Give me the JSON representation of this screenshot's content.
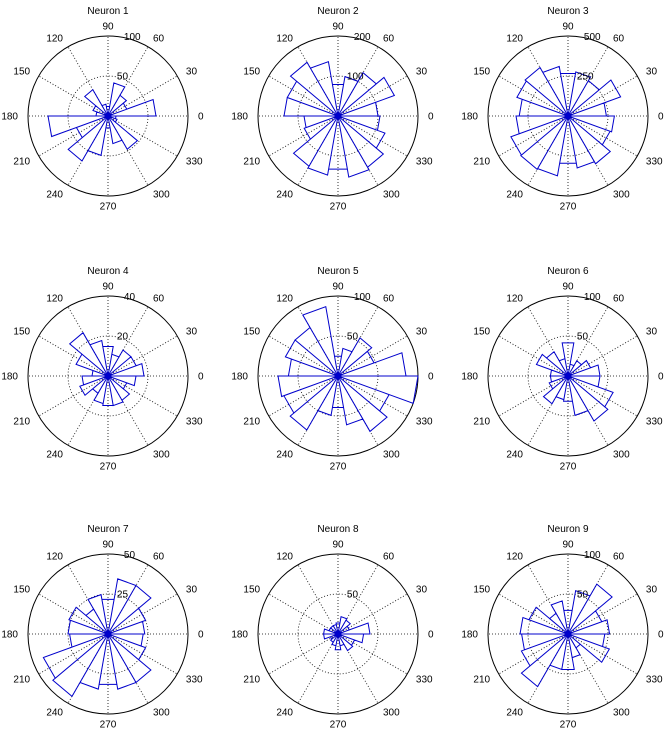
{
  "chart_data": [
    {
      "type": "polar-rose",
      "title": "Neuron 1",
      "rmax": 100,
      "r_ticks": [
        50,
        100
      ],
      "theta_labels": [
        "0",
        "30",
        "60",
        "90",
        "120",
        "150",
        "180",
        "210",
        "240",
        "270",
        "300",
        "330"
      ],
      "bins_deg": [
        0,
        20,
        40,
        60,
        80,
        100,
        120,
        140,
        160,
        180,
        200,
        220,
        240,
        260,
        280,
        300,
        320,
        340
      ],
      "values": [
        60,
        25,
        30,
        42,
        12,
        15,
        38,
        20,
        15,
        75,
        42,
        65,
        50,
        15,
        35,
        48,
        12,
        10
      ]
    },
    {
      "type": "polar-rose",
      "title": "Neuron 2",
      "rmax": 200,
      "r_ticks": [
        100,
        200
      ],
      "theta_labels": [
        "0",
        "30",
        "60",
        "90",
        "120",
        "150",
        "180",
        "210",
        "240",
        "270",
        "300",
        "330"
      ],
      "bins_deg": [
        0,
        20,
        40,
        60,
        80,
        100,
        120,
        140,
        160,
        180,
        200,
        220,
        240,
        260,
        280,
        300,
        320,
        340
      ],
      "values": [
        100,
        150,
        125,
        100,
        80,
        138,
        155,
        135,
        135,
        85,
        90,
        145,
        150,
        135,
        155,
        148,
        125,
        105
      ]
    },
    {
      "type": "polar-rose",
      "title": "Neuron 3",
      "rmax": 500,
      "r_ticks": [
        250,
        500
      ],
      "theta_labels": [
        "0",
        "30",
        "60",
        "90",
        "120",
        "150",
        "180",
        "210",
        "240",
        "270",
        "300",
        "330"
      ],
      "bins_deg": [
        0,
        20,
        40,
        60,
        80,
        100,
        120,
        140,
        160,
        180,
        200,
        220,
        240,
        260,
        280,
        300,
        320,
        340
      ],
      "values": [
        240,
        350,
        255,
        280,
        270,
        315,
        350,
        340,
        305,
        325,
        380,
        385,
        380,
        300,
        330,
        345,
        280,
        290
      ]
    },
    {
      "type": "polar-rose",
      "title": "Neuron 4",
      "rmax": 40,
      "r_ticks": [
        20,
        40
      ],
      "theta_labels": [
        "0",
        "30",
        "60",
        "90",
        "120",
        "150",
        "180",
        "210",
        "240",
        "270",
        "300",
        "330"
      ],
      "bins_deg": [
        0,
        20,
        40,
        60,
        80,
        100,
        120,
        140,
        160,
        180,
        200,
        220,
        240,
        260,
        280,
        300,
        320,
        340
      ],
      "values": [
        18,
        15,
        15,
        11,
        15,
        18,
        25,
        17,
        8,
        13,
        15,
        10,
        14,
        15,
        15,
        14,
        10,
        14
      ]
    },
    {
      "type": "polar-rose",
      "title": "Neuron 5",
      "rmax": 100,
      "r_ticks": [
        50,
        100
      ],
      "theta_labels": [
        "0",
        "30",
        "60",
        "90",
        "120",
        "150",
        "180",
        "210",
        "240",
        "270",
        "300",
        "330"
      ],
      "bins_deg": [
        0,
        20,
        40,
        60,
        80,
        100,
        120,
        140,
        160,
        180,
        200,
        220,
        240,
        260,
        280,
        300,
        320,
        340
      ],
      "values": [
        85,
        48,
        55,
        35,
        25,
        88,
        70,
        70,
        62,
        75,
        72,
        78,
        50,
        40,
        62,
        80,
        68,
        100
      ]
    },
    {
      "type": "polar-rose",
      "title": "Neuron 6",
      "rmax": 100,
      "r_ticks": [
        50,
        100
      ],
      "theta_labels": [
        "0",
        "30",
        "60",
        "90",
        "120",
        "150",
        "180",
        "210",
        "240",
        "270",
        "300",
        "330"
      ],
      "bins_deg": [
        0,
        20,
        40,
        60,
        80,
        100,
        120,
        140,
        160,
        180,
        200,
        220,
        240,
        260,
        280,
        300,
        320,
        340
      ],
      "values": [
        40,
        30,
        22,
        15,
        42,
        22,
        35,
        42,
        22,
        22,
        25,
        40,
        30,
        32,
        50,
        65,
        60,
        40
      ]
    },
    {
      "type": "polar-rose",
      "title": "Neuron 7",
      "rmax": 50,
      "r_ticks": [
        25,
        50
      ],
      "theta_labels": [
        "0",
        "30",
        "60",
        "90",
        "120",
        "150",
        "180",
        "210",
        "240",
        "270",
        "300",
        "330"
      ],
      "bins_deg": [
        0,
        20,
        40,
        60,
        80,
        100,
        120,
        140,
        160,
        180,
        200,
        220,
        240,
        260,
        280,
        300,
        320,
        340
      ],
      "values": [
        23,
        25,
        35,
        35,
        22,
        25,
        18,
        26,
        25,
        24,
        43,
        45,
        35,
        32,
        35,
        35,
        25,
        22
      ]
    },
    {
      "type": "polar-rose",
      "title": "Neuron 8",
      "rmax": 100,
      "r_ticks": [
        50
      ],
      "theta_labels": [
        "0",
        "30",
        "60",
        "90",
        "120",
        "150",
        "180",
        "210",
        "240",
        "270",
        "300",
        "330"
      ],
      "bins_deg": [
        0,
        20,
        40,
        60,
        80,
        100,
        120,
        140,
        160,
        180,
        200,
        220,
        240,
        260,
        280,
        300,
        320,
        340
      ],
      "values": [
        40,
        15,
        20,
        22,
        14,
        12,
        12,
        12,
        18,
        18,
        10,
        12,
        15,
        20,
        15,
        24,
        22,
        32
      ]
    },
    {
      "type": "polar-rose",
      "title": "Neuron 9",
      "rmax": 100,
      "r_ticks": [
        50,
        100
      ],
      "theta_labels": [
        "0",
        "30",
        "60",
        "90",
        "120",
        "150",
        "180",
        "210",
        "240",
        "270",
        "300",
        "330"
      ],
      "bins_deg": [
        0,
        20,
        40,
        60,
        80,
        100,
        120,
        140,
        160,
        180,
        200,
        220,
        240,
        260,
        280,
        300,
        320,
        340
      ],
      "values": [
        52,
        45,
        72,
        55,
        30,
        42,
        30,
        52,
        60,
        58,
        62,
        76,
        45,
        45,
        30,
        20,
        55,
        46
      ]
    }
  ]
}
